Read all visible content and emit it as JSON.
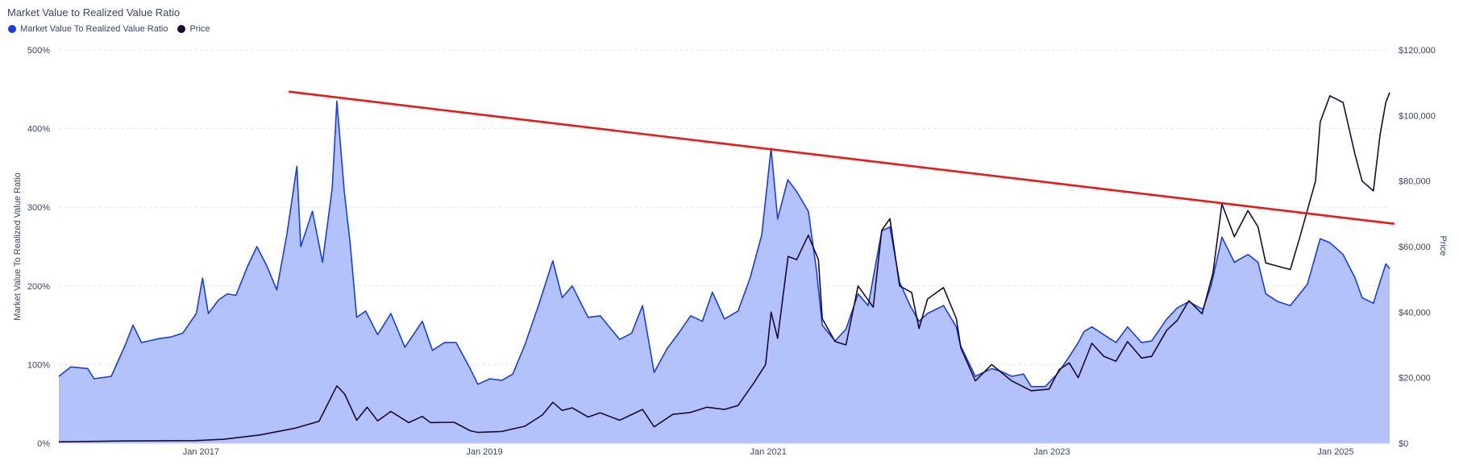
{
  "chart_data": {
    "type": "line",
    "title": "Market Value to Realized Value Ratio",
    "legend": "top-left",
    "grid": true,
    "colors": {
      "ratio_line": "#1a3fd6",
      "ratio_fill": "#b3c2fb",
      "price_line": "#1b0b2e",
      "trend_line": "#e51a1a",
      "grid": "#e6e8ee",
      "text": "#3b4563"
    },
    "x_range": [
      "2016-01-01",
      "2025-05-20"
    ],
    "x_ticks": [
      {
        "label": "Jan 2017",
        "date": "2017-01-01"
      },
      {
        "label": "Jan 2019",
        "date": "2019-01-01"
      },
      {
        "label": "Jan 2021",
        "date": "2021-01-01"
      },
      {
        "label": "Jan 2023",
        "date": "2023-01-01"
      },
      {
        "label": "Jan 2025",
        "date": "2025-01-01"
      }
    ],
    "y_left": {
      "label": "Market Value To Realized Value Ratio",
      "range": [
        0,
        500
      ],
      "ticks": [
        0,
        100,
        200,
        300,
        400,
        500
      ],
      "tick_labels": [
        "0%",
        "100%",
        "200%",
        "300%",
        "400%",
        "500%"
      ]
    },
    "y_right": {
      "label": "Price",
      "range": [
        0,
        120000
      ],
      "ticks": [
        0,
        20000,
        40000,
        60000,
        80000,
        100000,
        120000
      ],
      "tick_labels": [
        "$0",
        "$20,000",
        "$40,000",
        "$60,000",
        "$80,000",
        "$100,000",
        "$120,000"
      ]
    },
    "series": [
      {
        "name": "Market Value To Realized Value Ratio",
        "axis": "left",
        "points": [
          [
            "2016-01-01",
            85
          ],
          [
            "2016-02-01",
            97
          ],
          [
            "2016-03-15",
            95
          ],
          [
            "2016-04-01",
            82
          ],
          [
            "2016-05-15",
            85
          ],
          [
            "2016-06-20",
            125
          ],
          [
            "2016-07-10",
            150
          ],
          [
            "2016-08-01",
            128
          ],
          [
            "2016-09-15",
            133
          ],
          [
            "2016-10-15",
            135
          ],
          [
            "2016-11-15",
            140
          ],
          [
            "2016-12-20",
            165
          ],
          [
            "2017-01-05",
            210
          ],
          [
            "2017-01-20",
            165
          ],
          [
            "2017-02-15",
            182
          ],
          [
            "2017-03-10",
            190
          ],
          [
            "2017-04-01",
            188
          ],
          [
            "2017-05-01",
            225
          ],
          [
            "2017-05-25",
            250
          ],
          [
            "2017-06-20",
            225
          ],
          [
            "2017-07-15",
            195
          ],
          [
            "2017-08-10",
            265
          ],
          [
            "2017-09-05",
            352
          ],
          [
            "2017-09-15",
            250
          ],
          [
            "2017-10-15",
            295
          ],
          [
            "2017-11-10",
            230
          ],
          [
            "2017-12-05",
            325
          ],
          [
            "2017-12-17",
            435
          ],
          [
            "2018-01-05",
            320
          ],
          [
            "2018-01-20",
            255
          ],
          [
            "2018-02-06",
            160
          ],
          [
            "2018-03-01",
            168
          ],
          [
            "2018-04-01",
            138
          ],
          [
            "2018-05-05",
            165
          ],
          [
            "2018-06-10",
            122
          ],
          [
            "2018-07-25",
            155
          ],
          [
            "2018-08-20",
            118
          ],
          [
            "2018-09-20",
            128
          ],
          [
            "2018-10-20",
            128
          ],
          [
            "2018-11-25",
            95
          ],
          [
            "2018-12-15",
            75
          ],
          [
            "2019-01-15",
            82
          ],
          [
            "2019-02-15",
            80
          ],
          [
            "2019-03-15",
            88
          ],
          [
            "2019-04-15",
            125
          ],
          [
            "2019-05-20",
            175
          ],
          [
            "2019-06-26",
            232
          ],
          [
            "2019-07-20",
            185
          ],
          [
            "2019-08-15",
            200
          ],
          [
            "2019-09-25",
            160
          ],
          [
            "2019-10-26",
            162
          ],
          [
            "2019-12-15",
            132
          ],
          [
            "2020-01-15",
            140
          ],
          [
            "2020-02-12",
            175
          ],
          [
            "2020-03-13",
            90
          ],
          [
            "2020-04-15",
            120
          ],
          [
            "2020-05-15",
            140
          ],
          [
            "2020-06-15",
            162
          ],
          [
            "2020-07-15",
            155
          ],
          [
            "2020-08-10",
            192
          ],
          [
            "2020-09-10",
            158
          ],
          [
            "2020-10-15",
            168
          ],
          [
            "2020-11-15",
            210
          ],
          [
            "2020-12-15",
            265
          ],
          [
            "2021-01-08",
            375
          ],
          [
            "2021-01-25",
            285
          ],
          [
            "2021-02-20",
            335
          ],
          [
            "2021-03-15",
            320
          ],
          [
            "2021-04-14",
            295
          ],
          [
            "2021-05-05",
            220
          ],
          [
            "2021-05-20",
            150
          ],
          [
            "2021-06-22",
            130
          ],
          [
            "2021-07-20",
            145
          ],
          [
            "2021-08-20",
            190
          ],
          [
            "2021-09-15",
            175
          ],
          [
            "2021-10-20",
            270
          ],
          [
            "2021-11-10",
            275
          ],
          [
            "2021-12-05",
            205
          ],
          [
            "2022-01-01",
            175
          ],
          [
            "2022-01-24",
            155
          ],
          [
            "2022-02-15",
            165
          ],
          [
            "2022-03-28",
            175
          ],
          [
            "2022-04-30",
            148
          ],
          [
            "2022-05-10",
            125
          ],
          [
            "2022-06-18",
            85
          ],
          [
            "2022-07-30",
            95
          ],
          [
            "2022-08-20",
            92
          ],
          [
            "2022-09-20",
            85
          ],
          [
            "2022-10-20",
            88
          ],
          [
            "2022-11-09",
            72
          ],
          [
            "2022-12-15",
            72
          ],
          [
            "2023-01-15",
            88
          ],
          [
            "2023-02-15",
            110
          ],
          [
            "2023-03-10",
            128
          ],
          [
            "2023-03-25",
            142
          ],
          [
            "2023-04-14",
            148
          ],
          [
            "2023-05-15",
            138
          ],
          [
            "2023-06-15",
            128
          ],
          [
            "2023-07-15",
            148
          ],
          [
            "2023-08-20",
            128
          ],
          [
            "2023-09-15",
            130
          ],
          [
            "2023-10-24",
            158
          ],
          [
            "2023-11-20",
            172
          ],
          [
            "2023-12-20",
            180
          ],
          [
            "2024-01-25",
            170
          ],
          [
            "2024-02-15",
            200
          ],
          [
            "2024-03-14",
            262
          ],
          [
            "2024-04-15",
            230
          ],
          [
            "2024-05-20",
            240
          ],
          [
            "2024-06-15",
            230
          ],
          [
            "2024-07-05",
            190
          ],
          [
            "2024-08-05",
            180
          ],
          [
            "2024-09-06",
            175
          ],
          [
            "2024-10-20",
            202
          ],
          [
            "2024-11-22",
            260
          ],
          [
            "2024-12-17",
            255
          ],
          [
            "2025-01-20",
            240
          ],
          [
            "2025-02-20",
            210
          ],
          [
            "2025-03-10",
            185
          ],
          [
            "2025-04-08",
            178
          ],
          [
            "2025-04-25",
            205
          ],
          [
            "2025-05-10",
            228
          ],
          [
            "2025-05-20",
            222
          ]
        ]
      },
      {
        "name": "Price",
        "axis": "right",
        "points": [
          [
            "2016-01-01",
            430
          ],
          [
            "2016-06-15",
            680
          ],
          [
            "2016-12-15",
            780
          ],
          [
            "2017-03-01",
            1200
          ],
          [
            "2017-06-01",
            2500
          ],
          [
            "2017-09-01",
            4600
          ],
          [
            "2017-11-01",
            6700
          ],
          [
            "2017-12-17",
            17500
          ],
          [
            "2018-01-06",
            15000
          ],
          [
            "2018-02-06",
            7000
          ],
          [
            "2018-03-05",
            11000
          ],
          [
            "2018-04-01",
            6800
          ],
          [
            "2018-05-05",
            9700
          ],
          [
            "2018-06-20",
            6300
          ],
          [
            "2018-07-25",
            8200
          ],
          [
            "2018-08-15",
            6300
          ],
          [
            "2018-10-15",
            6400
          ],
          [
            "2018-11-25",
            3800
          ],
          [
            "2018-12-15",
            3300
          ],
          [
            "2019-02-15",
            3600
          ],
          [
            "2019-04-15",
            5200
          ],
          [
            "2019-05-30",
            8600
          ],
          [
            "2019-06-26",
            12500
          ],
          [
            "2019-07-20",
            10000
          ],
          [
            "2019-08-15",
            10800
          ],
          [
            "2019-09-25",
            8000
          ],
          [
            "2019-10-26",
            9300
          ],
          [
            "2019-12-15",
            7000
          ],
          [
            "2020-02-12",
            10300
          ],
          [
            "2020-03-13",
            5000
          ],
          [
            "2020-04-30",
            8800
          ],
          [
            "2020-06-15",
            9400
          ],
          [
            "2020-07-27",
            11000
          ],
          [
            "2020-09-10",
            10300
          ],
          [
            "2020-10-15",
            11500
          ],
          [
            "2020-11-25",
            18500
          ],
          [
            "2020-12-25",
            24000
          ],
          [
            "2021-01-08",
            40000
          ],
          [
            "2021-01-25",
            32000
          ],
          [
            "2021-02-21",
            57000
          ],
          [
            "2021-03-15",
            56000
          ],
          [
            "2021-04-14",
            63500
          ],
          [
            "2021-05-10",
            56000
          ],
          [
            "2021-05-20",
            38000
          ],
          [
            "2021-06-22",
            31000
          ],
          [
            "2021-07-20",
            30000
          ],
          [
            "2021-08-20",
            48000
          ],
          [
            "2021-09-28",
            41500
          ],
          [
            "2021-10-20",
            65000
          ],
          [
            "2021-11-10",
            68500
          ],
          [
            "2021-12-05",
            48000
          ],
          [
            "2022-01-05",
            46000
          ],
          [
            "2022-01-24",
            35000
          ],
          [
            "2022-02-15",
            44000
          ],
          [
            "2022-03-28",
            47500
          ],
          [
            "2022-04-30",
            38000
          ],
          [
            "2022-05-12",
            29000
          ],
          [
            "2022-06-18",
            19000
          ],
          [
            "2022-07-30",
            24000
          ],
          [
            "2022-09-20",
            19000
          ],
          [
            "2022-11-09",
            16000
          ],
          [
            "2022-12-25",
            16500
          ],
          [
            "2023-01-20",
            22500
          ],
          [
            "2023-02-15",
            24500
          ],
          [
            "2023-03-10",
            20000
          ],
          [
            "2023-04-14",
            30500
          ],
          [
            "2023-05-15",
            26500
          ],
          [
            "2023-06-15",
            25000
          ],
          [
            "2023-07-15",
            31000
          ],
          [
            "2023-08-20",
            26000
          ],
          [
            "2023-09-15",
            26500
          ],
          [
            "2023-10-24",
            34500
          ],
          [
            "2023-11-20",
            37500
          ],
          [
            "2023-12-20",
            43500
          ],
          [
            "2024-01-23",
            39500
          ],
          [
            "2024-02-20",
            52000
          ],
          [
            "2024-03-14",
            73000
          ],
          [
            "2024-04-15",
            63000
          ],
          [
            "2024-05-20",
            71000
          ],
          [
            "2024-06-15",
            66000
          ],
          [
            "2024-07-05",
            55000
          ],
          [
            "2024-08-05",
            54000
          ],
          [
            "2024-09-06",
            53000
          ],
          [
            "2024-10-01",
            63000
          ],
          [
            "2024-11-10",
            80000
          ],
          [
            "2024-11-22",
            98000
          ],
          [
            "2024-12-17",
            106000
          ],
          [
            "2025-01-20",
            104000
          ],
          [
            "2025-02-20",
            88000
          ],
          [
            "2025-03-10",
            80000
          ],
          [
            "2025-04-08",
            77000
          ],
          [
            "2025-04-25",
            94000
          ],
          [
            "2025-05-10",
            104000
          ],
          [
            "2025-05-20",
            107000
          ]
        ]
      }
    ],
    "annotations": [
      {
        "type": "trend-line",
        "color": "#e51a1a",
        "from": [
          "2017-08-15",
          447
        ],
        "to": [
          "2025-06-01",
          279
        ]
      }
    ]
  }
}
